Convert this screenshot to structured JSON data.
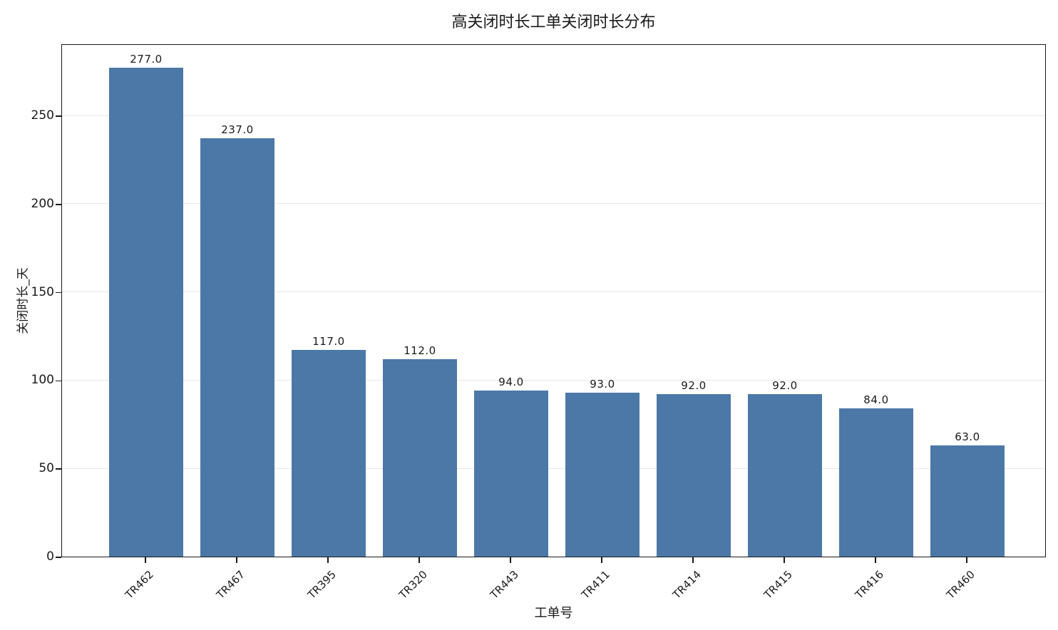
{
  "chart_data": {
    "type": "bar",
    "title": "高关闭时长工单关闭时长分布",
    "xlabel": "工单号",
    "ylabel": "关闭时长_天",
    "categories": [
      "TR462",
      "TR467",
      "TR395",
      "TR320",
      "TR443",
      "TR411",
      "TR414",
      "TR415",
      "TR416",
      "TR460"
    ],
    "values": [
      277.0,
      237.0,
      117.0,
      112.0,
      94.0,
      93.0,
      92.0,
      92.0,
      84.0,
      63.0
    ],
    "value_labels": [
      "277.0",
      "237.0",
      "117.0",
      "112.0",
      "94.0",
      "93.0",
      "92.0",
      "92.0",
      "84.0",
      "63.0"
    ],
    "yticks": [
      0,
      50,
      100,
      150,
      200,
      250
    ],
    "ylim": [
      0,
      290.8
    ],
    "grid": "horizontal-only",
    "legend_position": "none",
    "x_tick_rotation_deg": 45,
    "colors": {
      "bar": "#4c78a8",
      "gridline": "#e8e8e8",
      "axis": "#1a1a1a",
      "text": "#1a1a1a",
      "background": "#ffffff"
    }
  }
}
